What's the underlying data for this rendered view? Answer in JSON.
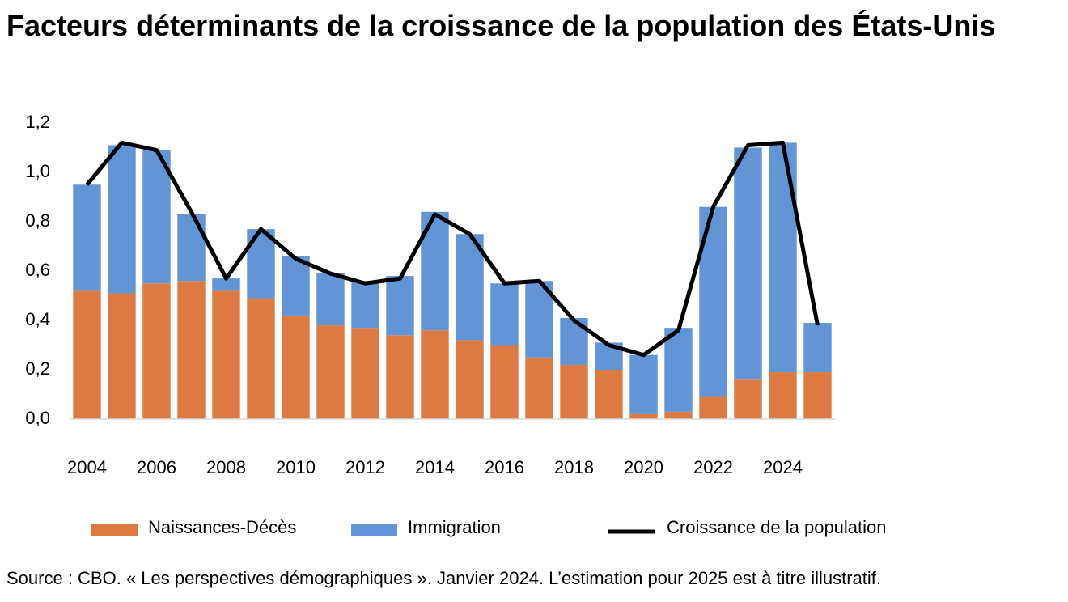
{
  "chart_data": {
    "type": "bar",
    "stacked": true,
    "title": "Facteurs déterminants de la croissance de la population des États-Unis",
    "source": "Source : CBO. « Les perspectives démographiques ». Janvier 2024. L’estimation pour 2025 est à titre illustratif.",
    "categories": [
      "2004",
      null,
      "2006",
      null,
      "2008",
      null,
      "2010",
      null,
      "2012",
      null,
      "2014",
      null,
      "2016",
      null,
      "2018",
      null,
      "2020",
      null,
      "2022",
      null,
      "2024",
      null
    ],
    "series": [
      {
        "name": "Naissances-Décès",
        "type": "bar",
        "color": "#dd7a42",
        "values": [
          0.52,
          0.51,
          0.55,
          0.56,
          0.52,
          0.49,
          0.42,
          0.38,
          0.37,
          0.34,
          0.36,
          0.32,
          0.3,
          0.25,
          0.22,
          0.2,
          0.02,
          0.03,
          0.09,
          0.16,
          0.19,
          0.19
        ]
      },
      {
        "name": "Immigration",
        "type": "bar",
        "color": "#6195d6",
        "values": [
          0.43,
          0.6,
          0.54,
          0.27,
          0.05,
          0.28,
          0.24,
          0.21,
          0.19,
          0.24,
          0.48,
          0.43,
          0.25,
          0.31,
          0.19,
          0.11,
          0.24,
          0.34,
          0.77,
          0.94,
          0.93,
          0.2
        ]
      },
      {
        "name": "Croissance de la population",
        "type": "line",
        "color": "#000000",
        "values": [
          0.95,
          1.12,
          1.09,
          0.84,
          0.57,
          0.77,
          0.65,
          0.59,
          0.55,
          0.57,
          0.83,
          0.75,
          0.55,
          0.56,
          0.4,
          0.3,
          0.26,
          0.36,
          0.86,
          1.11,
          1.12,
          0.38
        ]
      }
    ],
    "ylim": [
      0,
      1.2
    ],
    "yticks": [
      {
        "value": 0,
        "label": "0,0"
      },
      {
        "value": 0.2,
        "label": "0,2"
      },
      {
        "value": 0.4,
        "label": "0,4"
      },
      {
        "value": 0.6,
        "label": "0,6"
      },
      {
        "value": 0.8,
        "label": "0,8"
      },
      {
        "value": 1.0,
        "label": "1,0"
      },
      {
        "value": 1.2,
        "label": "1,2"
      }
    ],
    "grid": false,
    "legend": "bottom"
  }
}
